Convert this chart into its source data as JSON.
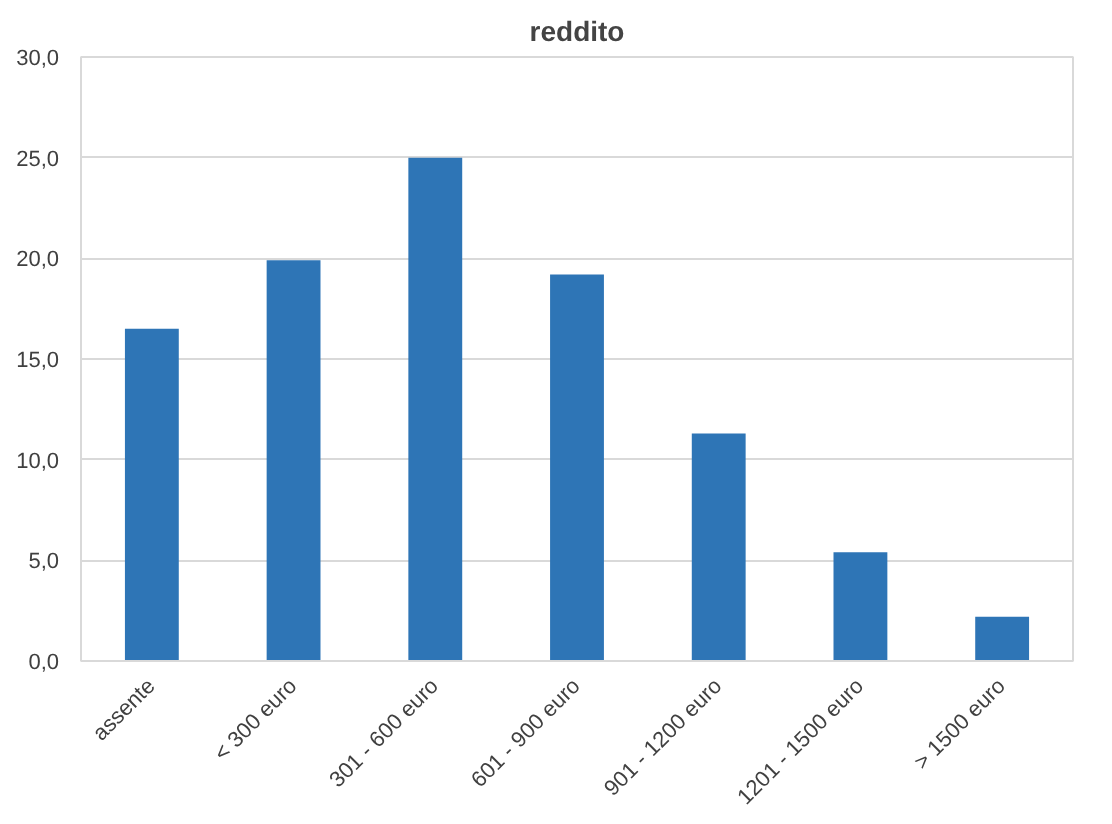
{
  "chart_data": {
    "type": "bar",
    "title": "reddito",
    "categories": [
      "assente",
      "< 300 euro",
      "301 - 600 euro",
      "601 - 900 euro",
      "901 - 1200 euro",
      "1201 - 1500 euro",
      "> 1500 euro"
    ],
    "values": [
      16.5,
      19.9,
      25.0,
      19.2,
      11.3,
      5.4,
      2.2
    ],
    "color": "#2e75b6",
    "ylim": [
      0,
      30
    ],
    "yticks": [
      {
        "value": 0,
        "label": "0,0"
      },
      {
        "value": 5,
        "label": "5,0"
      },
      {
        "value": 10,
        "label": "10,0"
      },
      {
        "value": 15,
        "label": "15,0"
      },
      {
        "value": 20,
        "label": "20,0"
      },
      {
        "value": 25,
        "label": "25,0"
      },
      {
        "value": 30,
        "label": "30,0"
      }
    ],
    "grid": "y"
  }
}
